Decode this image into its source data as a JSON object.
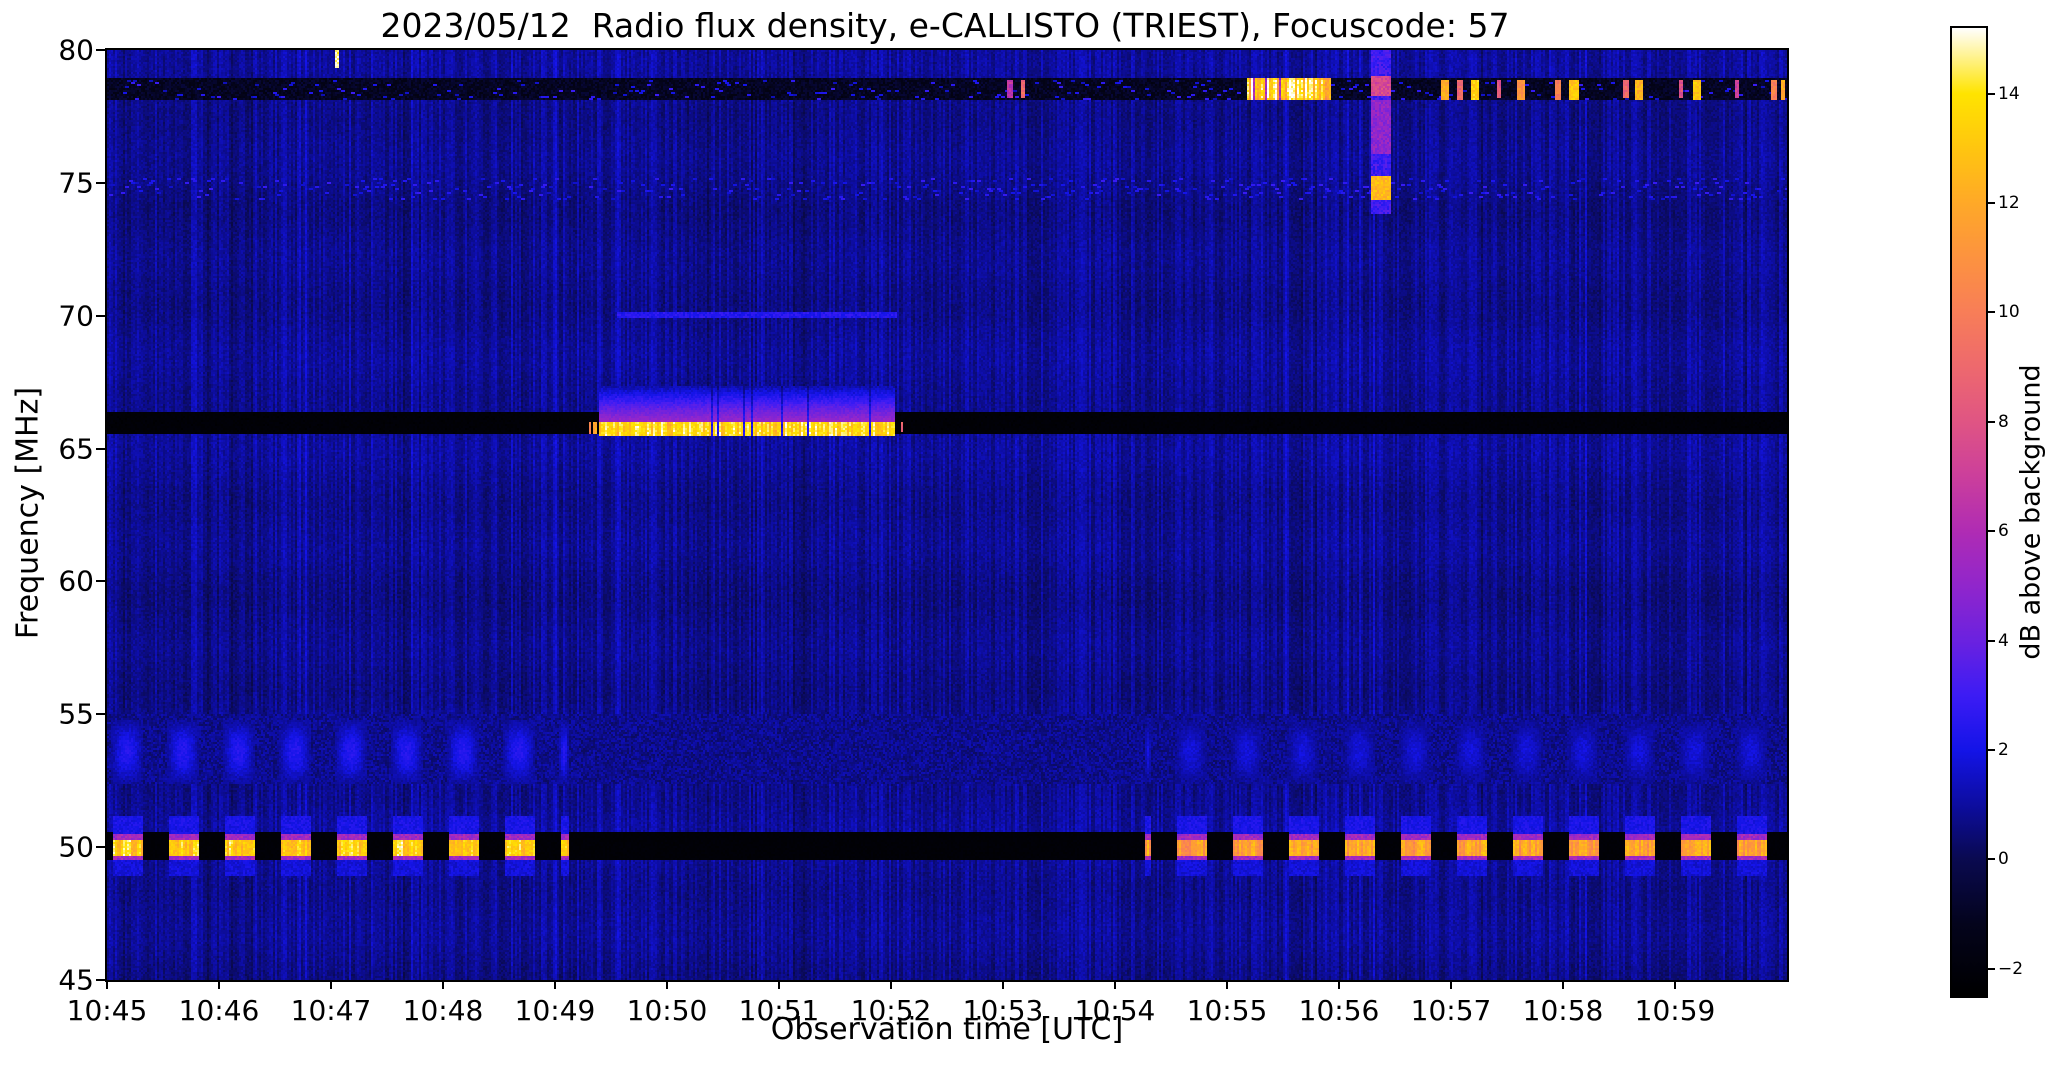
{
  "chart_data": {
    "type": "heatmap",
    "title": "2023/05/12  Radio flux density, e-CALLISTO (TRIEST), Focuscode: 57",
    "xlabel": "Observation time [UTC]",
    "ylabel": "Frequency [MHz]",
    "x_ticks": [
      "10:45",
      "10:46",
      "10:47",
      "10:48",
      "10:49",
      "10:50",
      "10:51",
      "10:52",
      "10:53",
      "10:54",
      "10:55",
      "10:56",
      "10:57",
      "10:58",
      "10:59"
    ],
    "x_tick_minutes": [
      0,
      1,
      2,
      3,
      4,
      5,
      6,
      7,
      8,
      9,
      10,
      11,
      12,
      13,
      14
    ],
    "xlim_minutes": [
      0,
      15
    ],
    "y_ticks": [
      45,
      50,
      55,
      60,
      65,
      70,
      75,
      80
    ],
    "ylim": [
      45,
      80
    ],
    "grid": false,
    "colorbar": {
      "label": "dB above background",
      "ticks": [
        -2,
        0,
        2,
        4,
        6,
        8,
        10,
        12,
        14
      ],
      "vmin": -2.5,
      "vmax": 15.2,
      "stops": [
        [
          -2.5,
          "#000000"
        ],
        [
          -1.2,
          "#04041c"
        ],
        [
          0,
          "#0a0a50"
        ],
        [
          1,
          "#0d0da0"
        ],
        [
          2,
          "#1414e8"
        ],
        [
          3,
          "#3d1cf5"
        ],
        [
          4,
          "#6b22e0"
        ],
        [
          5,
          "#9126cc"
        ],
        [
          6,
          "#b02cb4"
        ],
        [
          7,
          "#cc3f9c"
        ],
        [
          8,
          "#e05584"
        ],
        [
          9,
          "#ee696e"
        ],
        [
          10,
          "#f87e58"
        ],
        [
          11,
          "#fd9340"
        ],
        [
          12,
          "#ffa928"
        ],
        [
          13,
          "#ffc610"
        ],
        [
          14,
          "#ffe400"
        ],
        [
          15.2,
          "#ffffff"
        ]
      ]
    },
    "noise": {
      "seed": 20230512,
      "base": 0.45,
      "col_variation": 0.95,
      "cell_jitter": 0.62
    },
    "features": [
      {
        "name": "faint-streak-band-53MHz",
        "type": "band",
        "f": [
          52.4,
          55.0
        ],
        "t": [
          0,
          15
        ],
        "v": 0.75,
        "jitter": 0.55
      },
      {
        "name": "quiet-band-66MHz",
        "type": "band",
        "f": [
          65.55,
          66.38
        ],
        "t": [
          0,
          15
        ],
        "v": -2.2,
        "jitter": 0.15
      },
      {
        "name": "type-burst-66MHz",
        "type": "burst",
        "t": [
          4.4,
          7.04
        ],
        "core_f": [
          65.5,
          66.02
        ],
        "halo_f": [
          66.02,
          67.35
        ],
        "v_core": 13.6,
        "v_halo_top": 5.2,
        "gap_chance": 0.07
      },
      {
        "name": "burst-fragments-66MHz",
        "type": "speckles",
        "items": [
          {
            "t": 4.31,
            "f": [
              65.55,
              66.0
            ],
            "w": 0.03,
            "v": 10
          },
          {
            "t": 4.36,
            "f": [
              65.55,
              66.0
            ],
            "w": 0.025,
            "v": 12
          },
          {
            "t": 7.1,
            "f": [
              65.6,
              66.0
            ],
            "w": 0.03,
            "v": 9
          }
        ]
      },
      {
        "name": "drift-line-70MHz",
        "type": "band",
        "f": [
          69.88,
          70.14
        ],
        "t": [
          4.55,
          7.05
        ],
        "v": 2.4,
        "jitter": 0.5
      },
      {
        "name": "texture-band-75MHz",
        "type": "speckles_band",
        "f": [
          74.35,
          75.2
        ],
        "t": [
          0,
          15
        ],
        "density": 0.5,
        "v": [
          1.5,
          2.9
        ]
      },
      {
        "name": "interference-band-78MHz",
        "type": "band",
        "f": [
          78.12,
          78.95
        ],
        "t": [
          0,
          15
        ],
        "v": -1.1,
        "jitter": 0.6
      },
      {
        "name": "interference-speckle-78MHz",
        "type": "speckles_band",
        "f": [
          78.15,
          78.9
        ],
        "t": [
          0,
          15
        ],
        "density": 0.3,
        "v": [
          1.2,
          3.0
        ]
      },
      {
        "name": "strong-interference-78MHz",
        "type": "hot_band",
        "t": [
          10.18,
          10.92
        ],
        "f": [
          78.15,
          78.98
        ],
        "v_min": 10.5,
        "v_max": 15.0,
        "gap_chance": 0.06,
        "gap_v": 5
      },
      {
        "name": "rfi-bursts-78MHz",
        "type": "speckles",
        "items": [
          {
            "t": 8.06,
            "f": [
              78.2,
              78.85
            ],
            "w": 0.05,
            "v": 6.5
          },
          {
            "t": 8.18,
            "f": [
              78.2,
              78.85
            ],
            "w": 0.04,
            "v": 9
          },
          {
            "t": 11.94,
            "f": [
              78.15,
              78.9
            ],
            "w": 0.07,
            "v": 12
          },
          {
            "t": 12.08,
            "f": [
              78.15,
              78.9
            ],
            "w": 0.05,
            "v": 9
          },
          {
            "t": 12.21,
            "f": [
              78.15,
              78.9
            ],
            "w": 0.08,
            "v": 13.5
          },
          {
            "t": 12.43,
            "f": [
              78.2,
              78.85
            ],
            "w": 0.05,
            "v": 8
          },
          {
            "t": 12.62,
            "f": [
              78.15,
              78.9
            ],
            "w": 0.07,
            "v": 11
          },
          {
            "t": 12.96,
            "f": [
              78.15,
              78.9
            ],
            "w": 0.06,
            "v": 10
          },
          {
            "t": 13.1,
            "f": [
              78.15,
              78.9
            ],
            "w": 0.08,
            "v": 13
          },
          {
            "t": 13.56,
            "f": [
              78.2,
              78.85
            ],
            "w": 0.05,
            "v": 9
          },
          {
            "t": 13.68,
            "f": [
              78.15,
              78.9
            ],
            "w": 0.07,
            "v": 12.5
          },
          {
            "t": 14.06,
            "f": [
              78.2,
              78.85
            ],
            "w": 0.04,
            "v": 8
          },
          {
            "t": 14.2,
            "f": [
              78.15,
              78.9
            ],
            "w": 0.07,
            "v": 13
          },
          {
            "t": 14.55,
            "f": [
              78.2,
              78.85
            ],
            "w": 0.04,
            "v": 7
          },
          {
            "t": 14.88,
            "f": [
              78.15,
              78.9
            ],
            "w": 0.05,
            "v": 10
          },
          {
            "t": 14.97,
            "f": [
              78.15,
              78.9
            ],
            "w": 0.04,
            "v": 12
          }
        ]
      },
      {
        "name": "calibration-baseline-50MHz",
        "type": "band",
        "f": [
          49.48,
          50.58
        ],
        "t": [
          0,
          15
        ],
        "v": -2.2,
        "jitter": 0.12
      },
      {
        "name": "calibration-pulses-50MHz",
        "type": "pulses",
        "period": 0.5,
        "duty": 0.52,
        "phase": 0.06,
        "core_f": [
          49.68,
          50.3
        ],
        "edge_f": [
          49.55,
          50.5
        ],
        "glow_top_f": [
          50.5,
          51.2
        ],
        "glow_bot_f": [
          48.95,
          49.5
        ],
        "v_edge": 5.5,
        "v_glow": 2.1,
        "segments": [
          {
            "t": [
              0,
              4.13
            ],
            "v_core": 13.4
          },
          {
            "t": [
              9.27,
              15
            ],
            "v_core": 11.6
          }
        ]
      },
      {
        "name": "calibration-harmonic-53MHz",
        "type": "pulses_soft",
        "period": 0.5,
        "duty": 0.6,
        "phase": 0.03,
        "f": [
          52.35,
          54.75
        ],
        "segments": [
          {
            "t": [
              0,
              4.13
            ],
            "v": 2.4
          },
          {
            "t": [
              9.27,
              15
            ],
            "v": 1.8
          }
        ]
      },
      {
        "name": "rfi-vertical-stripe-1056",
        "type": "vstripe",
        "t": [
          11.29,
          11.47
        ],
        "f": [
          73.85,
          80
        ],
        "v": 3.0,
        "blobs": [
          {
            "f": [
              74.35,
              75.28
            ],
            "v": 12.6
          },
          {
            "f": [
              76.1,
              78.1
            ],
            "v": 5.0
          },
          {
            "f": [
              78.3,
              79.05
            ],
            "v": 7.5
          }
        ]
      },
      {
        "name": "bright-mark-top",
        "type": "speckles",
        "items": [
          {
            "t": 2.06,
            "f": [
              79.3,
              80
            ],
            "w": 0.04,
            "v": 14.6
          }
        ]
      }
    ]
  }
}
